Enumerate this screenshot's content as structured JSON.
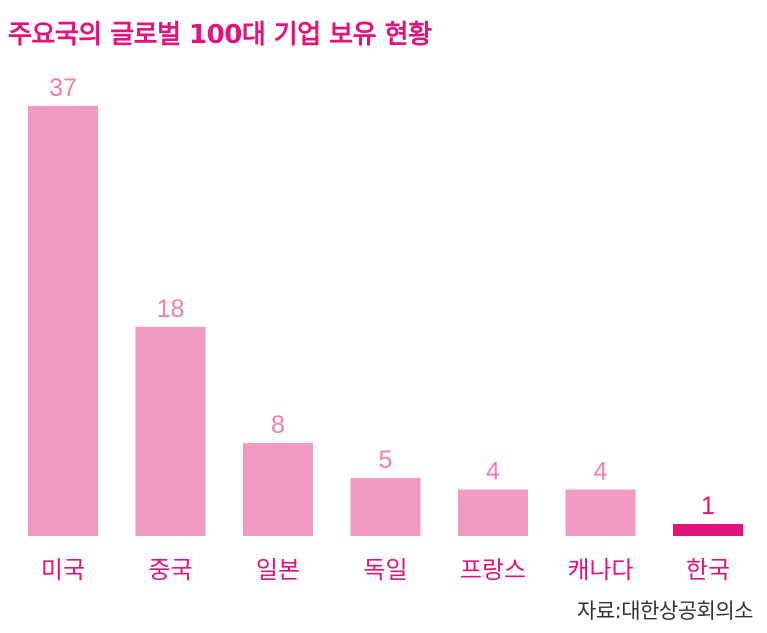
{
  "chart_data": {
    "type": "bar",
    "title": "주요국의 글로벌 100대 기업 보유 현황",
    "categories": [
      "미국",
      "중국",
      "일본",
      "독일",
      "프랑스",
      "캐나다",
      "한국"
    ],
    "values": [
      37,
      18,
      8,
      5,
      4,
      4,
      1
    ],
    "highlight_category": "한국",
    "xlabel": "",
    "ylabel": "",
    "ylim": [
      0,
      37
    ],
    "grid": false,
    "legend": "none",
    "source": "자료:대한상공회의소"
  },
  "colors": {
    "bar": "#f29ac4",
    "highlight_bar": "#e4127c",
    "value_label": "#f07db3",
    "highlight_value_label": "#e4127c",
    "category_label": "#e4127c",
    "title": "#e4127c"
  }
}
